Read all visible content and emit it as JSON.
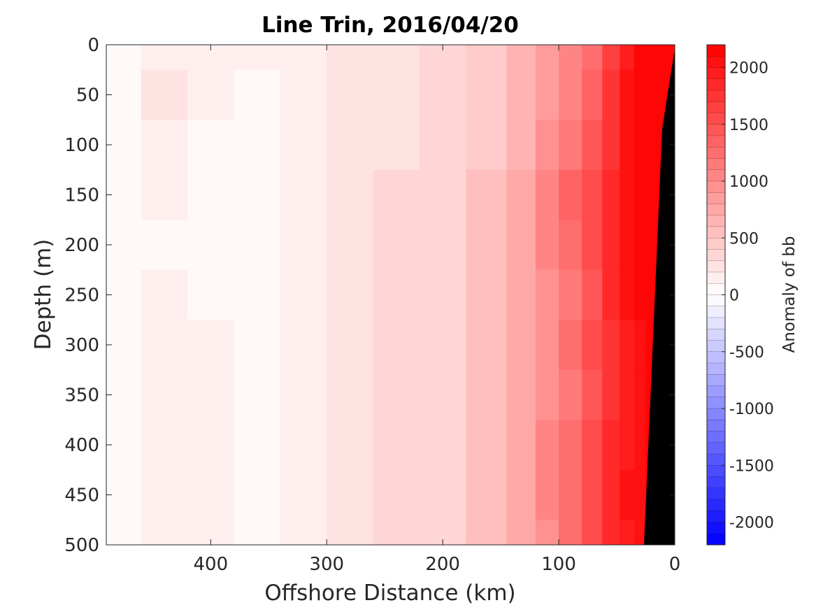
{
  "chart_data": {
    "type": "heatmap",
    "title": "Line Trin, 2016/04/20",
    "xlabel": "Offshore Distance (km)",
    "ylabel": "Depth (m)",
    "xlim": [
      490,
      0
    ],
    "ylim": [
      0,
      500
    ],
    "x_reversed": true,
    "y_reversed": true,
    "xticks": [
      400,
      300,
      200,
      100,
      0
    ],
    "yticks": [
      0,
      50,
      100,
      150,
      200,
      250,
      300,
      350,
      400,
      450,
      500
    ],
    "colorbar": {
      "label": "Anomaly of bb",
      "range": [
        -2200,
        2200
      ],
      "ticks": [
        2000,
        1500,
        1000,
        500,
        0,
        -500,
        -1000,
        -1500,
        -2000
      ],
      "levels": 44,
      "positive_color": "#ff0000",
      "negative_color": "#0000ff",
      "zero_color": "#ffffff"
    },
    "offshore_km": [
      480,
      440,
      400,
      360,
      320,
      280,
      240,
      200,
      160,
      130,
      110,
      90,
      70,
      55,
      40,
      30,
      20
    ],
    "depth_m": [
      0,
      50,
      100,
      150,
      200,
      250,
      300,
      350,
      400,
      450,
      500
    ],
    "anomaly": [
      [
        50,
        150,
        160,
        150,
        150,
        200,
        280,
        360,
        450,
        600,
        800,
        1000,
        1200,
        1600,
        1900,
        2100,
        2200
      ],
      [
        50,
        200,
        100,
        20,
        150,
        220,
        280,
        360,
        450,
        620,
        850,
        1050,
        1300,
        1700,
        2000,
        2150,
        2200
      ],
      [
        50,
        150,
        0,
        0,
        120,
        200,
        280,
        360,
        480,
        650,
        900,
        1100,
        1400,
        1750,
        2000,
        2200,
        2200
      ],
      [
        50,
        150,
        0,
        0,
        150,
        220,
        300,
        380,
        500,
        700,
        1000,
        1300,
        1500,
        1800,
        2000,
        2200,
        2200
      ],
      [
        60,
        80,
        50,
        0,
        150,
        200,
        300,
        380,
        500,
        700,
        1000,
        1200,
        1500,
        1850,
        2050,
        2200,
        2200
      ],
      [
        60,
        100,
        80,
        20,
        150,
        220,
        300,
        380,
        500,
        700,
        950,
        1150,
        1400,
        1800,
        2000,
        2100,
        2200
      ],
      [
        60,
        100,
        120,
        30,
        160,
        240,
        320,
        380,
        520,
        720,
        950,
        1200,
        1500,
        1750,
        1950,
        2050,
        2200
      ],
      [
        60,
        100,
        100,
        20,
        160,
        260,
        300,
        360,
        500,
        700,
        900,
        1150,
        1400,
        1700,
        1900,
        2000,
        2100
      ],
      [
        60,
        100,
        120,
        40,
        160,
        220,
        320,
        380,
        500,
        720,
        1000,
        1200,
        1500,
        1800,
        1950,
        2050,
        2100
      ],
      [
        60,
        100,
        100,
        30,
        140,
        220,
        300,
        380,
        500,
        720,
        1000,
        1250,
        1550,
        1800,
        2000,
        2050,
        2100
      ],
      [
        60,
        100,
        100,
        50,
        150,
        220,
        300,
        380,
        500,
        700,
        950,
        1200,
        1500,
        1850,
        1950,
        2000,
        2000
      ]
    ]
  }
}
